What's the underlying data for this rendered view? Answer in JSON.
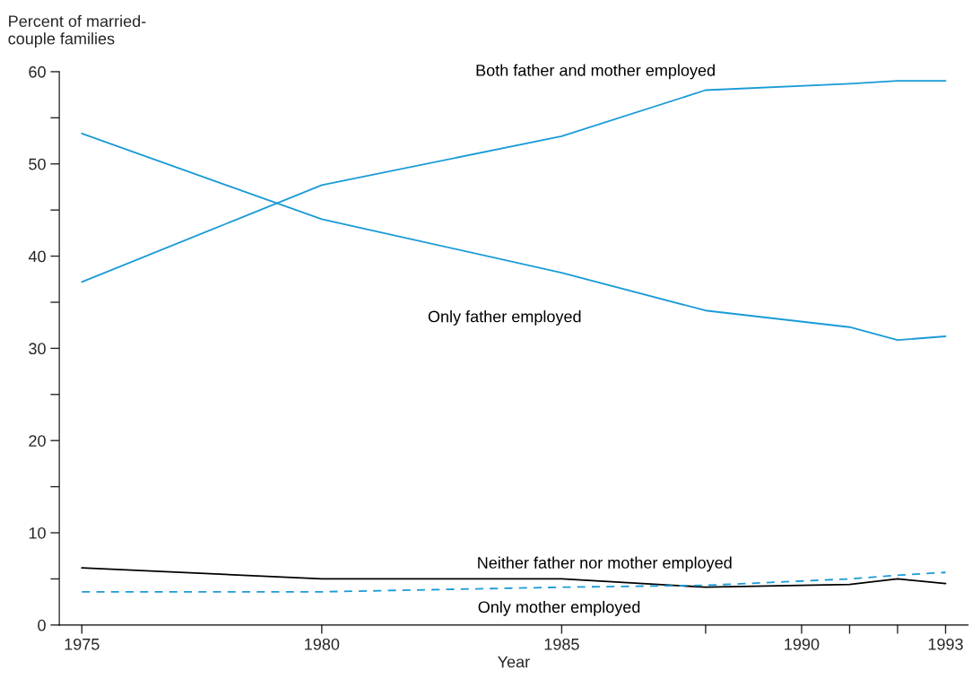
{
  "chart_data": {
    "type": "line",
    "xlabel": "Year",
    "ylabel": "Percent of married-\ncouple families",
    "x": [
      1975,
      1980,
      1985,
      1988,
      1991,
      1992,
      1993
    ],
    "series": [
      {
        "name": "Both father and mother employed",
        "color": "#1a9bd7",
        "line_style": "solid",
        "values": [
          37.2,
          47.7,
          53.0,
          58.0,
          58.7,
          59.0,
          59.0
        ]
      },
      {
        "name": "Only father employed",
        "color": "#1a9bd7",
        "line_style": "solid",
        "values": [
          53.3,
          44.0,
          38.2,
          34.1,
          32.3,
          30.9,
          31.3
        ]
      },
      {
        "name": "Neither father nor mother employed",
        "color": "#000000",
        "line_style": "solid",
        "values": [
          6.2,
          5.0,
          5.0,
          4.1,
          4.4,
          5.0,
          4.5
        ]
      },
      {
        "name": "Only mother employed",
        "color": "#1a9bd7",
        "line_style": "dashed",
        "values": [
          3.6,
          3.6,
          4.1,
          4.3,
          5.0,
          5.4,
          5.7
        ]
      }
    ],
    "xlim": [
      1974.53,
      1993.47
    ],
    "ylim": [
      0,
      60
    ],
    "xticks": [
      1975,
      1980,
      1985,
      {
        "value": 1988,
        "label": null
      },
      1990,
      {
        "value": 1991,
        "label": null
      },
      {
        "value": 1992,
        "label": null
      },
      1993
    ],
    "yticks": [
      0,
      {
        "value": 5,
        "label": null
      },
      10,
      {
        "value": 15,
        "label": null
      },
      20,
      {
        "value": 25,
        "label": null
      },
      30,
      {
        "value": 35,
        "label": null
      },
      40,
      {
        "value": 45,
        "label": null
      },
      50,
      {
        "value": 55,
        "label": null
      },
      60
    ],
    "grid": false,
    "marker": "none"
  }
}
